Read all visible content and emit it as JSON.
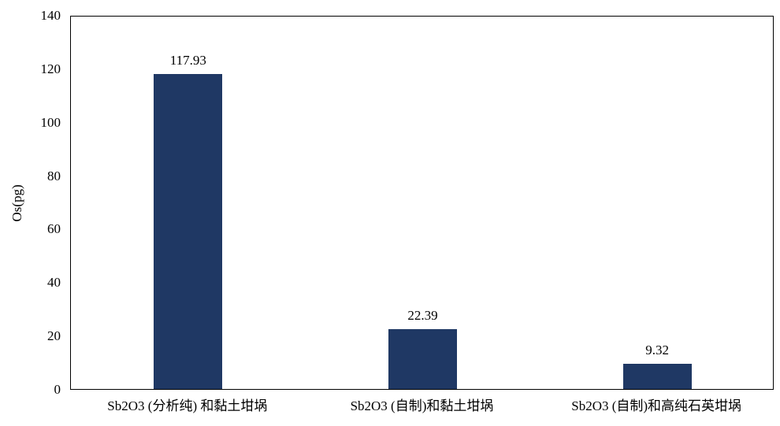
{
  "chart_data": {
    "type": "bar",
    "categories": [
      "Sb2O3 (分析纯) 和黏土坩埚",
      "Sb2O3 (自制)和黏土坩埚",
      "Sb2O3 (自制)和高纯石英坩埚"
    ],
    "values": [
      117.93,
      22.39,
      9.32
    ],
    "value_labels": [
      "117.93",
      "22.39",
      "9.32"
    ],
    "title": "",
    "xlabel": "",
    "ylabel": "Os(pg)",
    "ylim": [
      0,
      140
    ],
    "yticks": [
      0,
      20,
      40,
      60,
      80,
      100,
      120,
      140
    ],
    "grid": false,
    "legend": "none",
    "bar_color": "#1F3864",
    "frame_color": "#000000",
    "background_color": "#FFFFFF"
  }
}
